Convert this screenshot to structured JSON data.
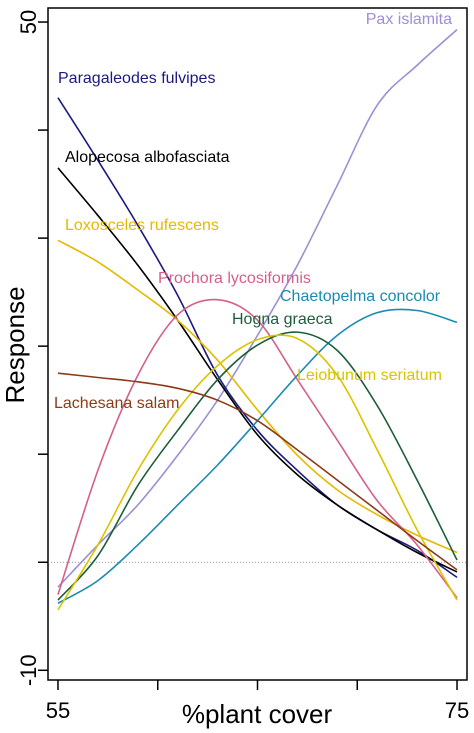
{
  "chart_data": {
    "type": "line",
    "ylabel": "Response",
    "xlabel": "%plant cover",
    "xlim": [
      54.5,
      75.5
    ],
    "ylim": [
      -10.9,
      51.3
    ],
    "xticks": [
      55,
      75
    ],
    "xminorticks": [
      60,
      65,
      70
    ],
    "yticks": [
      -10,
      50
    ],
    "yminorticks": [
      0,
      10,
      20,
      30,
      40
    ],
    "hline": 0,
    "x": [
      55,
      57,
      59,
      61,
      63,
      65,
      67,
      69,
      71,
      73,
      75
    ],
    "series": [
      {
        "name": "Pax islamita",
        "color": "#9c8fd6",
        "values": [
          -2.3,
          1.6,
          5.3,
          9.9,
          15,
          21,
          27.5,
          34.9,
          42.3,
          46,
          49.3
        ]
      },
      {
        "name": "Paragaleodes fulvipes",
        "color": "#1a1a80",
        "values": [
          43,
          37.2,
          31.2,
          24.7,
          17.3,
          12.2,
          8.5,
          5.3,
          3,
          1.1,
          -1.4
        ]
      },
      {
        "name": "Alopecosa albofasciata",
        "color": "#000000",
        "values": [
          36.5,
          32.1,
          27.5,
          22.4,
          16.9,
          11.8,
          8.1,
          5.3,
          3,
          0.9,
          -0.9
        ]
      },
      {
        "name": "Loxosceles rufescens",
        "color": "#e6b800",
        "values": [
          29.8,
          27.8,
          25.2,
          22.4,
          18.7,
          14.1,
          9.9,
          6.7,
          4.4,
          2.5,
          0.9
        ]
      },
      {
        "name": "Prochora lycosiformis",
        "color": "#d4608a",
        "values": [
          -3,
          8.5,
          17.3,
          22.9,
          24.3,
          22.4,
          16.9,
          11.3,
          5.7,
          1.6,
          -3.3
        ]
      },
      {
        "name": "Chaetopelma concolor",
        "color": "#1a8ab0",
        "values": [
          -3.8,
          -1.7,
          1.6,
          5.3,
          9,
          13.1,
          17.3,
          21,
          23.1,
          23.3,
          22.2
        ]
      },
      {
        "name": "Hogna graeca",
        "color": "#1d5e3a",
        "values": [
          -3.5,
          0.6,
          7.1,
          12.2,
          16.9,
          20.1,
          21.3,
          19.6,
          14.5,
          7.6,
          0.2
        ]
      },
      {
        "name": "Leiobunum seriatum",
        "color": "#d9c400",
        "values": [
          -4.4,
          1.6,
          8.5,
          14.1,
          18.2,
          20.6,
          20.7,
          17.3,
          10.4,
          3,
          -3.5
        ]
      },
      {
        "name": "Lachesana salam",
        "color": "#8b3a1a",
        "values": [
          17.5,
          17.1,
          16.7,
          16.1,
          15,
          13.1,
          10.4,
          7.6,
          4.8,
          2,
          -0.7
        ]
      }
    ]
  }
}
